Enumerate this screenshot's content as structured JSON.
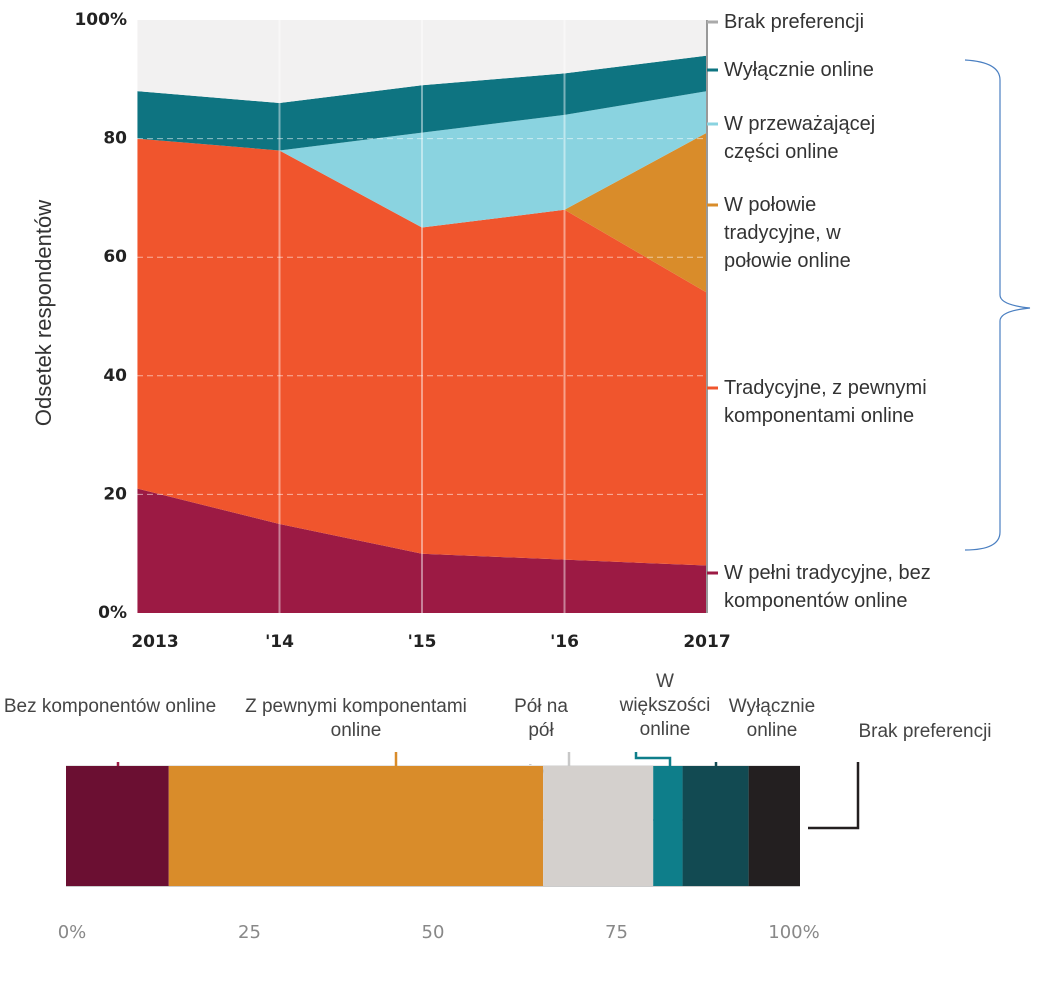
{
  "chart_data": [
    {
      "type": "area",
      "stacked": true,
      "ylabel": "Odsetek respondentów",
      "categories": [
        "2013",
        "'14",
        "'15",
        "'16",
        "2017"
      ],
      "series": [
        {
          "name": "W pełni tradycyjne, bez komponentów online",
          "color": "#9c1a44",
          "values": [
            21,
            15,
            10,
            9,
            8
          ]
        },
        {
          "name": "Tradycyjne, z pewnymi komponentami online",
          "color": "#f0552d",
          "values": [
            59,
            63,
            55,
            59,
            46
          ]
        },
        {
          "name": "W połowie tradycyjne, w połowie online",
          "color": "#d98c2a",
          "values": [
            0,
            0,
            0,
            0,
            27
          ]
        },
        {
          "name": "W przeważającej części online",
          "color": "#8ad3e0",
          "values": [
            0,
            0,
            16,
            16,
            7
          ]
        },
        {
          "name": "Wyłącznie online",
          "color": "#0e7481",
          "values": [
            8,
            8,
            8,
            7,
            6
          ]
        },
        {
          "name": "Brak preferencji",
          "color": "#f2f1f1",
          "values": [
            12,
            14,
            11,
            9,
            6
          ]
        }
      ],
      "ylim": [
        0,
        100
      ],
      "yticks": [
        {
          "value": 0,
          "label": "0%"
        },
        20,
        40,
        60,
        80,
        {
          "value": 100,
          "label": "100%"
        }
      ],
      "grid": true
    },
    {
      "type": "bar",
      "orientation": "horizontal",
      "stacked": true,
      "xlabel": "Odsetek respondentów",
      "categories": [
        "Bez komponentów online",
        "Z pewnymi komponentami online",
        "Pół na pół",
        "W większości online",
        "Wyłącznie online",
        "Brak preferencji"
      ],
      "values": [
        14,
        51,
        15,
        4,
        9,
        7
      ],
      "colors": [
        "#6b0f32",
        "#d98c2a",
        "#d4d0cd",
        "#0e7e8a",
        "#124a52",
        "#231f20"
      ],
      "xlim": [
        0,
        100
      ],
      "xticks": [
        {
          "value": 0,
          "label": "0%"
        },
        25,
        50,
        75,
        {
          "value": 100,
          "label": "100%"
        }
      ]
    }
  ]
}
